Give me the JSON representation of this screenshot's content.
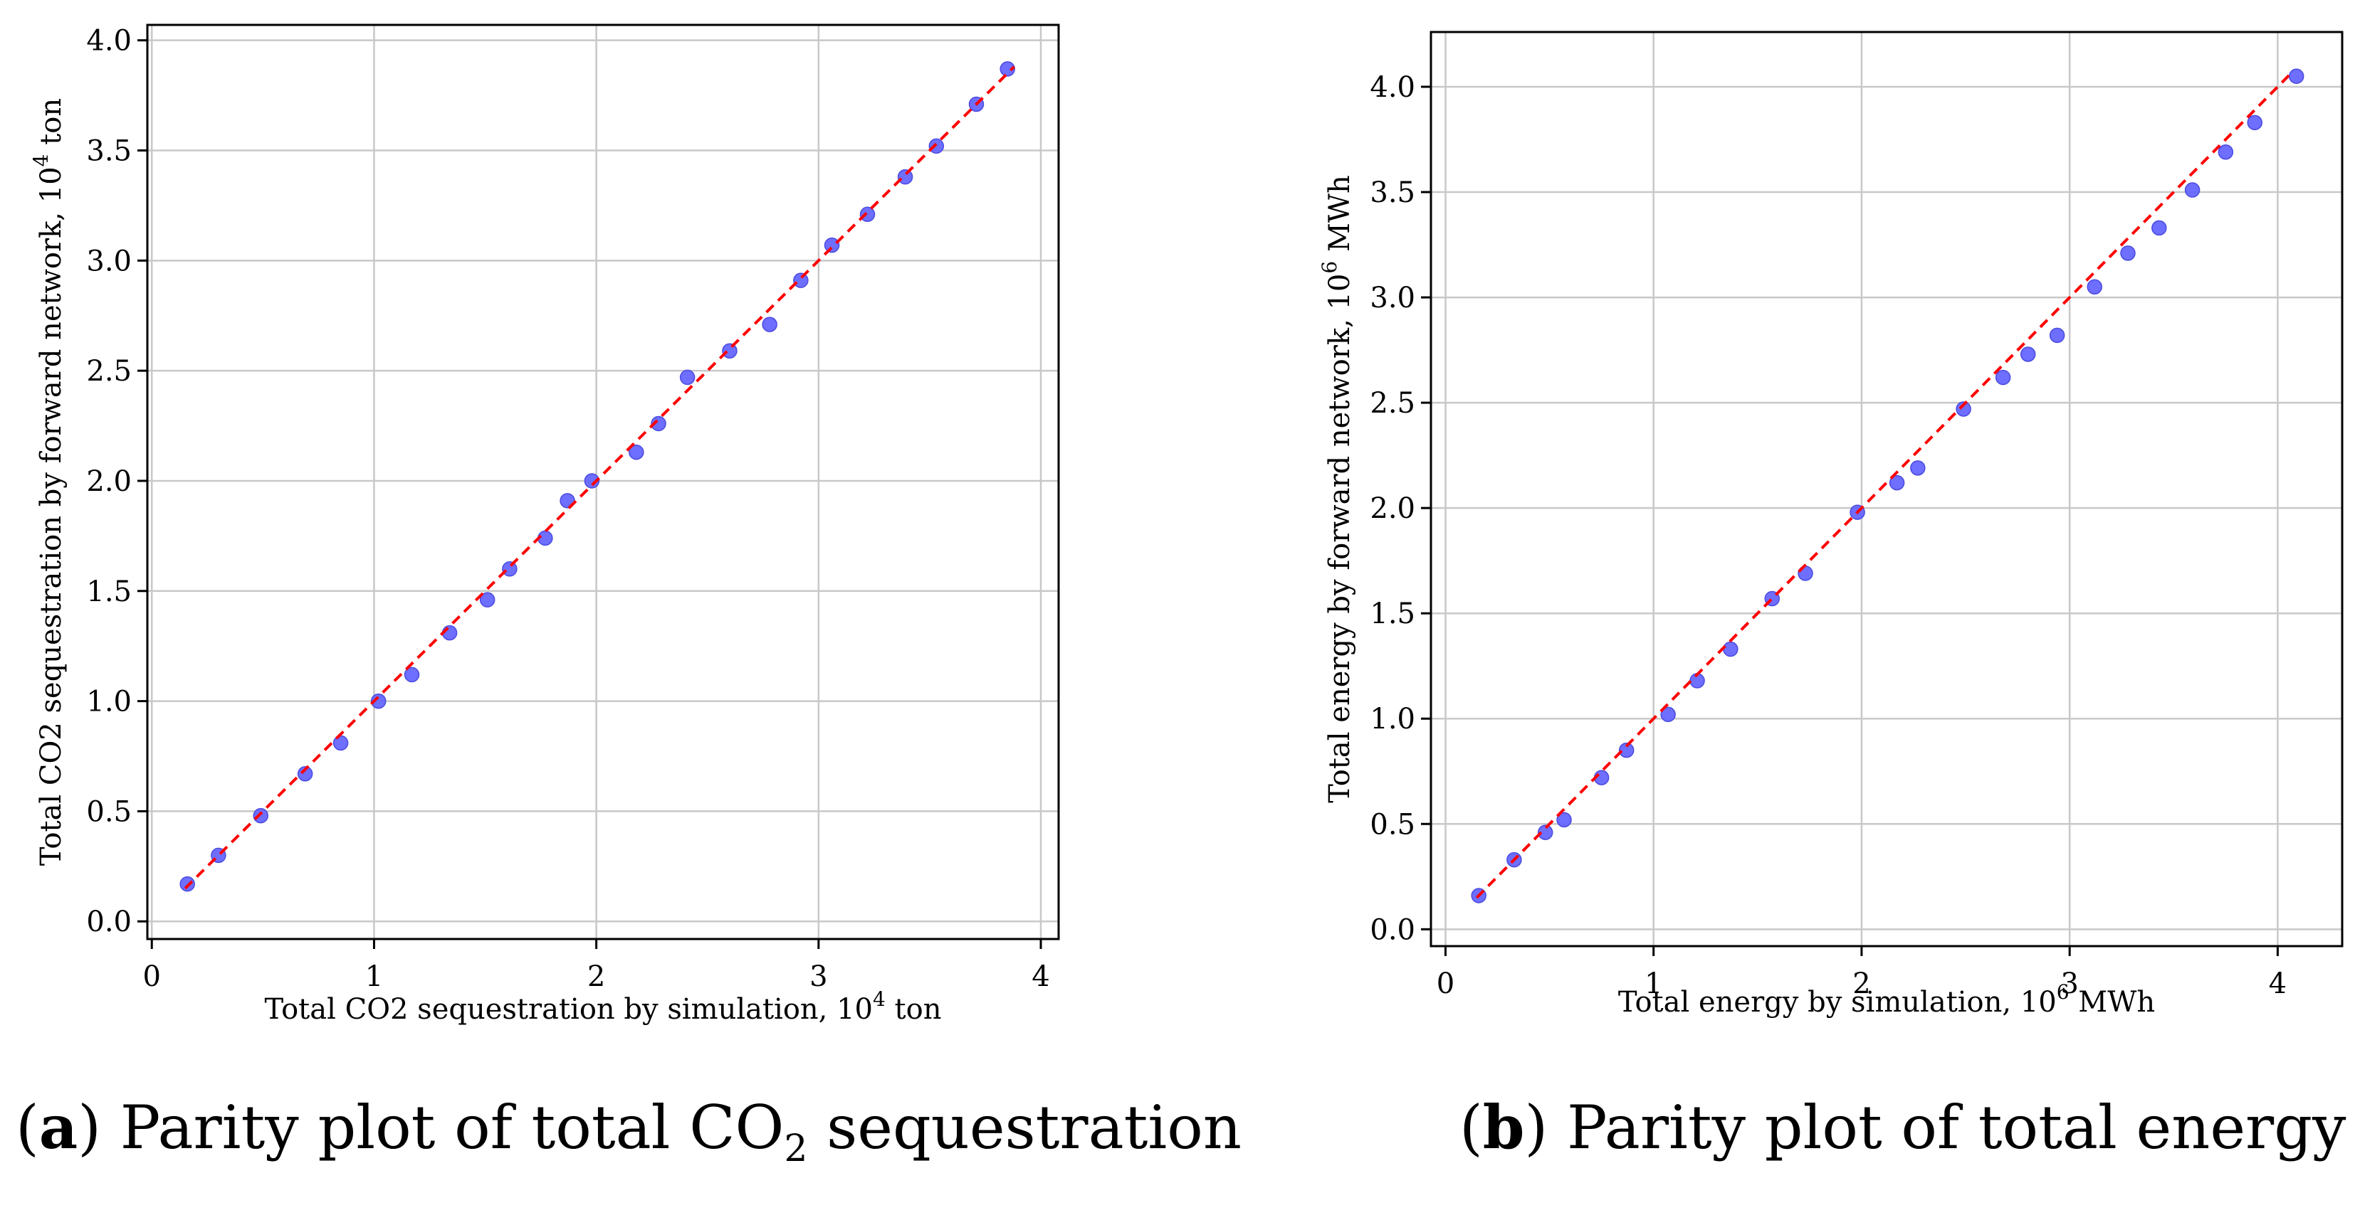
{
  "captions": {
    "a": {
      "letter": "a",
      "text_before": " Parity plot of total CO",
      "subscript": "2",
      "text_after": " sequestration"
    },
    "b": {
      "letter": "b",
      "text": " Parity plot of total energy"
    }
  },
  "colors": {
    "points": "#6666ff",
    "point_edge": "#4a4ae0",
    "diagonal": "#ff0000",
    "grid": "#c8c8c8",
    "axes": "#000000"
  },
  "chart_data": [
    {
      "type": "scatter",
      "title": "",
      "xlabel": "Total CO2 sequestration by simulation, 10",
      "xlabel_sup": "4",
      "xlabel_unit": " ton",
      "ylabel": "Total CO2 sequestration by forward network, 10",
      "ylabel_sup": "4",
      "ylabel_unit": " ton",
      "xlim": [
        -0.02,
        4.08
      ],
      "ylim": [
        -0.08,
        4.07
      ],
      "xticks": [
        0,
        1,
        2,
        3,
        4
      ],
      "xtick_labels": [
        "0",
        "1",
        "2",
        "3",
        "4"
      ],
      "yticks": [
        0.0,
        0.5,
        1.0,
        1.5,
        2.0,
        2.5,
        3.0,
        3.5,
        4.0
      ],
      "ytick_labels": [
        "0.0",
        "0.5",
        "1.0",
        "1.5",
        "2.0",
        "2.5",
        "3.0",
        "3.5",
        "4.0"
      ],
      "grid": true,
      "diagonal": [
        [
          0.15,
          0.15
        ],
        [
          3.88,
          3.88
        ]
      ],
      "series": [
        {
          "x": [
            0.16,
            0.3,
            0.49,
            0.69,
            0.85,
            1.02,
            1.17,
            1.34,
            1.51,
            1.61,
            1.77,
            1.87,
            1.98,
            2.18,
            2.28,
            2.41,
            2.6,
            2.78,
            2.92,
            3.06,
            3.22,
            3.39,
            3.53,
            3.71,
            3.85
          ],
          "y": [
            0.17,
            0.3,
            0.48,
            0.67,
            0.81,
            1.0,
            1.12,
            1.31,
            1.46,
            1.6,
            1.74,
            1.91,
            2.0,
            2.13,
            2.26,
            2.47,
            2.59,
            2.71,
            2.91,
            3.07,
            3.21,
            3.38,
            3.52,
            3.71,
            3.87
          ]
        }
      ]
    },
    {
      "type": "scatter",
      "title": "",
      "xlabel": "Total energy by simulation, 10",
      "xlabel_sup": "6",
      "xlabel_unit": " MWh",
      "ylabel": "Total energy by forward network, 10",
      "ylabel_sup": "6",
      "ylabel_unit": " MWh",
      "xlim": [
        -0.07,
        4.31
      ],
      "ylim": [
        -0.08,
        4.26
      ],
      "xticks": [
        0,
        1,
        2,
        3,
        4
      ],
      "xtick_labels": [
        "0",
        "1",
        "2",
        "3",
        "4"
      ],
      "yticks": [
        0.0,
        0.5,
        1.0,
        1.5,
        2.0,
        2.5,
        3.0,
        3.5,
        4.0
      ],
      "ytick_labels": [
        "0.0",
        "0.5",
        "1.0",
        "1.5",
        "2.0",
        "2.5",
        "3.0",
        "3.5",
        "4.0"
      ],
      "grid": true,
      "diagonal": [
        [
          0.15,
          0.15
        ],
        [
          4.07,
          4.07
        ]
      ],
      "series": [
        {
          "x": [
            0.16,
            0.33,
            0.48,
            0.57,
            0.75,
            0.87,
            1.07,
            1.21,
            1.37,
            1.57,
            1.73,
            1.98,
            2.17,
            2.27,
            2.49,
            2.68,
            2.8,
            2.94,
            3.12,
            3.28,
            3.43,
            3.59,
            3.75,
            3.89,
            4.09
          ],
          "y": [
            0.16,
            0.33,
            0.46,
            0.52,
            0.72,
            0.85,
            1.02,
            1.18,
            1.33,
            1.57,
            1.69,
            1.98,
            2.12,
            2.19,
            2.47,
            2.62,
            2.73,
            2.82,
            3.05,
            3.21,
            3.33,
            3.51,
            3.69,
            3.83,
            4.05
          ]
        }
      ]
    }
  ]
}
